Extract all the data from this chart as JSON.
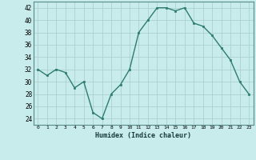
{
  "x": [
    0,
    1,
    2,
    3,
    4,
    5,
    6,
    7,
    8,
    9,
    10,
    11,
    12,
    13,
    14,
    15,
    16,
    17,
    18,
    19,
    20,
    21,
    22,
    23
  ],
  "y": [
    32,
    31,
    32,
    31.5,
    29,
    30,
    25,
    24,
    28,
    29.5,
    32,
    38,
    40,
    42,
    42,
    41.5,
    42,
    39.5,
    39,
    37.5,
    35.5,
    33.5,
    30,
    28
  ],
  "line_color": "#2e7d6e",
  "marker_color": "#2e7d6e",
  "bg_color": "#c8ecec",
  "grid_color": "#a8cccc",
  "xlabel": "Humidex (Indice chaleur)",
  "ylim": [
    23,
    43
  ],
  "xlim": [
    -0.5,
    23.5
  ],
  "yticks": [
    24,
    26,
    28,
    30,
    32,
    34,
    36,
    38,
    40,
    42
  ],
  "xticks": [
    0,
    1,
    2,
    3,
    4,
    5,
    6,
    7,
    8,
    9,
    10,
    11,
    12,
    13,
    14,
    15,
    16,
    17,
    18,
    19,
    20,
    21,
    22,
    23
  ]
}
